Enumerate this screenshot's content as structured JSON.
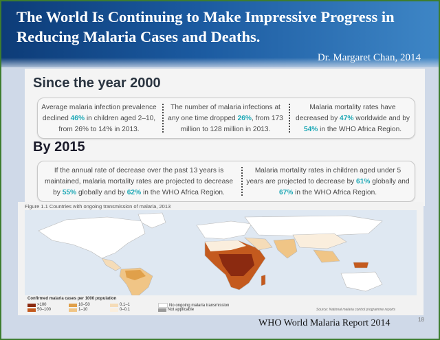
{
  "slide": {
    "title": "The World Is Continuing to Make Impressive Progress in Reducing Malaria Cases and Deaths.",
    "attribution": "Dr. Margaret Chan, 2014",
    "page_number": "18",
    "footer_source": "WHO World Malaria Report 2014"
  },
  "since2000": {
    "heading": "Since the year 2000",
    "items": [
      {
        "pre": "Average malaria infection prevalence declined ",
        "highlight": "46%",
        "post": " in children aged 2–10, from 26% to 14% in 2013."
      },
      {
        "pre": "The number of malaria infections at any one time dropped ",
        "highlight": "26%",
        "post": ", from 173 million to 128 million in 2013."
      },
      {
        "pre": "Malaria mortality rates have decreased by ",
        "highlight": "47%",
        "mid": " worldwide and by ",
        "highlight2": "54%",
        "post": " in the WHO Africa Region."
      }
    ]
  },
  "by2015": {
    "heading": "By 2015",
    "items": [
      {
        "pre": "If the annual rate of decrease over the past 13 years is maintained, malaria mortality rates are projected to decrease by ",
        "highlight": "55%",
        "mid": " globally and by ",
        "highlight2": "62%",
        "post": " in the WHO Africa Region."
      },
      {
        "pre": "Malaria mortality rates in children aged under 5 years are projected to decrease by ",
        "highlight": "61%",
        "mid": " globally and ",
        "highlight2": "67%",
        "post": " in the WHO Africa Region."
      }
    ]
  },
  "map": {
    "caption": "Figure 1.1 Countries with ongoing transmission of malaria, 2013",
    "legend_title": "Confirmed malaria cases per 1000 population",
    "legend": [
      {
        "label": ">100",
        "color": "#8b2a10"
      },
      {
        "label": "50–100",
        "color": "#c45a1e"
      },
      {
        "label": "10–50",
        "color": "#e0a04a"
      },
      {
        "label": "1–10",
        "color": "#f0c586"
      },
      {
        "label": "0.1–1",
        "color": "#f5dcb8"
      },
      {
        "label": "0–0.1",
        "color": "#faeedd"
      },
      {
        "label": "No ongoing malaria transmission",
        "color": "#ffffff"
      },
      {
        "label": "Not applicable",
        "color": "#9a9a9a"
      }
    ],
    "source_note": "Source: National malaria control programme reports"
  }
}
